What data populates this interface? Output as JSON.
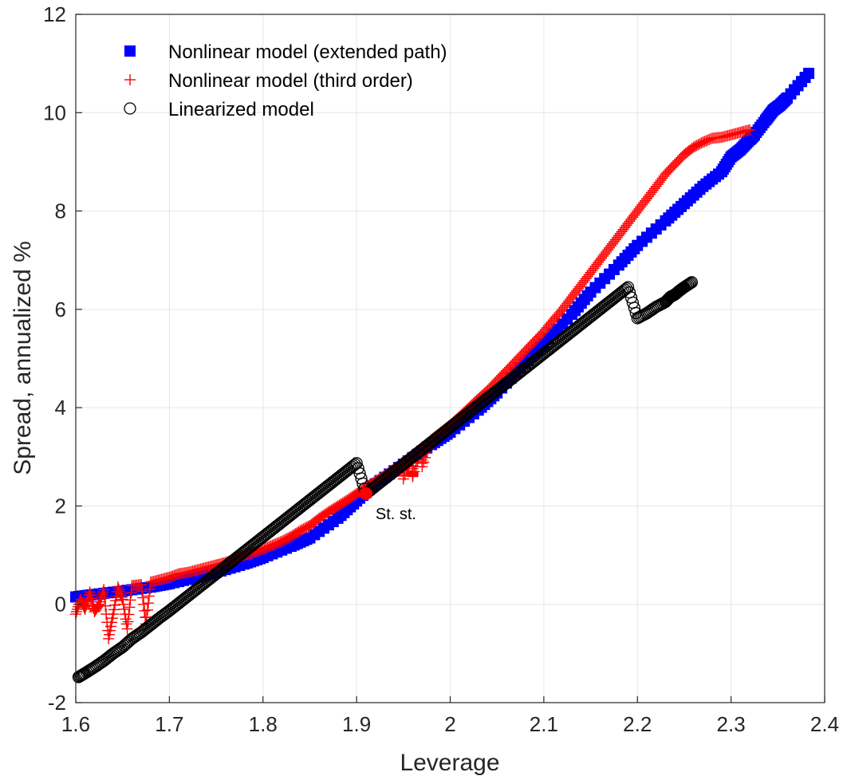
{
  "chart_data": {
    "type": "scatter",
    "title": "",
    "xlabel": "Leverage",
    "ylabel": "Spread, annualized %",
    "xlim": [
      1.6,
      2.4
    ],
    "ylim": [
      -2,
      12
    ],
    "xticks": [
      "1.6",
      "1.7",
      "1.8",
      "1.9",
      "2",
      "2.1",
      "2.2",
      "2.3",
      "2.4"
    ],
    "yticks": [
      "-2",
      "0",
      "2",
      "4",
      "6",
      "8",
      "10",
      "12"
    ],
    "grid": true,
    "legend_position": "top-left",
    "series": [
      {
        "name": "Nonlinear model (extended path)",
        "marker": "square-filled",
        "color": "#0000ff",
        "points": [
          [
            1.6,
            0.15
          ],
          [
            1.62,
            0.2
          ],
          [
            1.65,
            0.27
          ],
          [
            1.68,
            0.35
          ],
          [
            1.7,
            0.42
          ],
          [
            1.73,
            0.55
          ],
          [
            1.75,
            0.65
          ],
          [
            1.78,
            0.82
          ],
          [
            1.8,
            0.95
          ],
          [
            1.83,
            1.18
          ],
          [
            1.85,
            1.35
          ],
          [
            1.88,
            1.75
          ],
          [
            1.9,
            2.1
          ],
          [
            1.92,
            2.45
          ],
          [
            1.95,
            2.85
          ],
          [
            1.98,
            3.25
          ],
          [
            2.0,
            3.5
          ],
          [
            2.03,
            3.95
          ],
          [
            2.05,
            4.3
          ],
          [
            2.08,
            4.9
          ],
          [
            2.1,
            5.3
          ],
          [
            2.13,
            5.9
          ],
          [
            2.15,
            6.35
          ],
          [
            2.18,
            6.9
          ],
          [
            2.2,
            7.3
          ],
          [
            2.23,
            7.8
          ],
          [
            2.25,
            8.15
          ],
          [
            2.27,
            8.5
          ],
          [
            2.29,
            8.8
          ],
          [
            2.3,
            9.1
          ],
          [
            2.31,
            9.25
          ],
          [
            2.32,
            9.45
          ],
          [
            2.325,
            9.55
          ],
          [
            2.337,
            9.85
          ],
          [
            2.345,
            10.05
          ],
          [
            2.352,
            10.15
          ],
          [
            2.36,
            10.3
          ],
          [
            2.383,
            10.8
          ]
        ]
      },
      {
        "name": "Nonlinear model (third order)",
        "marker": "plus",
        "color": "#ff0000",
        "points": [
          [
            1.6,
            -0.2
          ],
          [
            1.605,
            0.1
          ],
          [
            1.61,
            -0.1
          ],
          [
            1.615,
            0.25
          ],
          [
            1.62,
            -0.15
          ],
          [
            1.625,
            0.0
          ],
          [
            1.63,
            0.3
          ],
          [
            1.635,
            -0.7
          ],
          [
            1.64,
            -0.2
          ],
          [
            1.645,
            0.35
          ],
          [
            1.65,
            0.1
          ],
          [
            1.655,
            -0.5
          ],
          [
            1.66,
            0.38
          ],
          [
            1.67,
            0.4
          ],
          [
            1.675,
            -0.4
          ],
          [
            1.68,
            0.45
          ],
          [
            1.69,
            0.5
          ],
          [
            1.7,
            0.55
          ],
          [
            1.71,
            0.62
          ],
          [
            1.72,
            0.65
          ],
          [
            1.73,
            0.7
          ],
          [
            1.74,
            0.75
          ],
          [
            1.75,
            0.8
          ],
          [
            1.76,
            0.85
          ],
          [
            1.77,
            0.92
          ],
          [
            1.78,
            1.0
          ],
          [
            1.79,
            1.05
          ],
          [
            1.8,
            1.12
          ],
          [
            1.81,
            1.2
          ],
          [
            1.82,
            1.28
          ],
          [
            1.83,
            1.38
          ],
          [
            1.84,
            1.5
          ],
          [
            1.85,
            1.6
          ],
          [
            1.86,
            1.75
          ],
          [
            1.87,
            1.88
          ],
          [
            1.88,
            2.0
          ],
          [
            1.89,
            2.12
          ],
          [
            1.9,
            2.25
          ],
          [
            1.91,
            2.38
          ],
          [
            1.92,
            2.5
          ],
          [
            1.93,
            2.62
          ],
          [
            1.94,
            2.75
          ],
          [
            1.95,
            2.9
          ],
          [
            1.96,
            3.05
          ],
          [
            1.97,
            3.2
          ],
          [
            1.98,
            3.35
          ],
          [
            1.99,
            3.5
          ],
          [
            2.0,
            3.65
          ],
          [
            2.01,
            3.82
          ],
          [
            2.02,
            4.0
          ],
          [
            2.03,
            4.18
          ],
          [
            2.04,
            4.35
          ],
          [
            2.05,
            4.55
          ],
          [
            2.06,
            4.75
          ],
          [
            2.07,
            4.95
          ],
          [
            2.08,
            5.15
          ],
          [
            2.09,
            5.35
          ],
          [
            2.1,
            5.55
          ],
          [
            2.11,
            5.78
          ],
          [
            2.12,
            6.0
          ],
          [
            2.13,
            6.25
          ],
          [
            2.14,
            6.5
          ],
          [
            2.15,
            6.75
          ],
          [
            2.16,
            7.0
          ],
          [
            2.17,
            7.25
          ],
          [
            2.18,
            7.5
          ],
          [
            2.19,
            7.75
          ],
          [
            2.2,
            8.0
          ],
          [
            2.21,
            8.25
          ],
          [
            2.22,
            8.5
          ],
          [
            2.23,
            8.75
          ],
          [
            2.24,
            8.95
          ],
          [
            2.25,
            9.15
          ],
          [
            2.26,
            9.3
          ],
          [
            2.27,
            9.4
          ],
          [
            2.28,
            9.48
          ],
          [
            2.29,
            9.5
          ],
          [
            2.3,
            9.55
          ],
          [
            2.31,
            9.6
          ],
          [
            2.32,
            9.65
          ],
          [
            1.95,
            2.55
          ],
          [
            1.96,
            2.7
          ],
          [
            1.97,
            2.8
          ],
          [
            1.96,
            2.6
          ]
        ]
      },
      {
        "name": "Linearized model",
        "marker": "circle-open",
        "color": "#000000",
        "points": [
          [
            1.603,
            -1.48
          ],
          [
            1.61,
            -1.4
          ],
          [
            1.62,
            -1.28
          ],
          [
            1.63,
            -1.15
          ],
          [
            1.64,
            -1.0
          ],
          [
            1.65,
            -0.87
          ],
          [
            1.66,
            -0.7
          ],
          [
            1.67,
            -0.57
          ],
          [
            1.68,
            -0.42
          ],
          [
            1.69,
            -0.27
          ],
          [
            1.7,
            -0.13
          ],
          [
            1.71,
            0.02
          ],
          [
            1.72,
            0.17
          ],
          [
            1.73,
            0.32
          ],
          [
            1.74,
            0.47
          ],
          [
            1.75,
            0.62
          ],
          [
            1.76,
            0.77
          ],
          [
            1.77,
            0.92
          ],
          [
            1.78,
            1.07
          ],
          [
            1.79,
            1.22
          ],
          [
            1.8,
            1.37
          ],
          [
            1.81,
            1.52
          ],
          [
            1.82,
            1.67
          ],
          [
            1.83,
            1.82
          ],
          [
            1.84,
            1.97
          ],
          [
            1.85,
            2.12
          ],
          [
            1.86,
            2.27
          ],
          [
            1.87,
            2.42
          ],
          [
            1.88,
            2.57
          ],
          [
            1.89,
            2.72
          ],
          [
            1.9,
            2.87
          ],
          [
            1.91,
            2.25
          ],
          [
            1.92,
            2.4
          ],
          [
            1.93,
            2.55
          ],
          [
            1.94,
            2.7
          ],
          [
            1.95,
            2.85
          ],
          [
            1.96,
            3.0
          ],
          [
            1.97,
            3.15
          ],
          [
            1.98,
            3.3
          ],
          [
            1.99,
            3.45
          ],
          [
            2.0,
            3.6
          ],
          [
            2.01,
            3.75
          ],
          [
            2.02,
            3.9
          ],
          [
            2.03,
            4.05
          ],
          [
            2.04,
            4.2
          ],
          [
            2.05,
            4.35
          ],
          [
            2.06,
            4.5
          ],
          [
            2.07,
            4.65
          ],
          [
            2.08,
            4.8
          ],
          [
            2.09,
            4.95
          ],
          [
            2.1,
            5.1
          ],
          [
            2.11,
            5.25
          ],
          [
            2.12,
            5.4
          ],
          [
            2.13,
            5.55
          ],
          [
            2.14,
            5.7
          ],
          [
            2.15,
            5.85
          ],
          [
            2.16,
            6.0
          ],
          [
            2.17,
            6.15
          ],
          [
            2.18,
            6.3
          ],
          [
            2.19,
            6.45
          ],
          [
            2.2,
            5.82
          ],
          [
            2.21,
            5.92
          ],
          [
            2.22,
            6.05
          ],
          [
            2.23,
            6.15
          ],
          [
            2.235,
            6.25
          ],
          [
            2.24,
            6.3
          ],
          [
            2.245,
            6.38
          ],
          [
            2.25,
            6.45
          ],
          [
            2.258,
            6.55
          ]
        ]
      }
    ],
    "annotations": [
      {
        "text": "St. st.",
        "x": 1.91,
        "y": 2.25,
        "marker_color": "#ff0000"
      }
    ]
  }
}
